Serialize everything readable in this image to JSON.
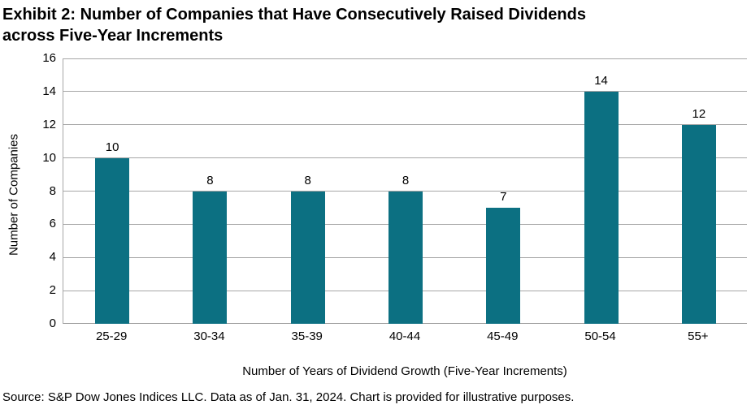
{
  "title": {
    "lines": [
      "Exhibit 2: Number of Companies that Have Consecutively Raised Dividends",
      "across Five-Year Increments"
    ],
    "full": "Exhibit 2: Number of Companies that Have Consecutively Raised Dividends across Five-Year Increments"
  },
  "source": "Source: S&P Dow Jones Indices LLC. Data as of Jan. 31, 2024. Chart is provided for illustrative purposes.",
  "chart_data": {
    "type": "bar",
    "categories": [
      "25-29",
      "30-34",
      "35-39",
      "40-44",
      "45-49",
      "50-54",
      "55+"
    ],
    "values": [
      10,
      8,
      8,
      8,
      7,
      14,
      12
    ],
    "title": "Exhibit 2: Number of Companies that Have Consecutively Raised Dividends across Five-Year Increments",
    "xlabel": "Number of Years of Dividend Growth (Five-Year Increments)",
    "ylabel": "Number of Companies",
    "ylim": [
      0,
      16
    ],
    "ytick_step": 2,
    "grid": true,
    "legend": false,
    "data_labels": true,
    "bar_color": "#0C7082",
    "gridline_color": "#A6A6A6",
    "axis_line_color": "#A6A6A6",
    "text_color": "#000000"
  }
}
